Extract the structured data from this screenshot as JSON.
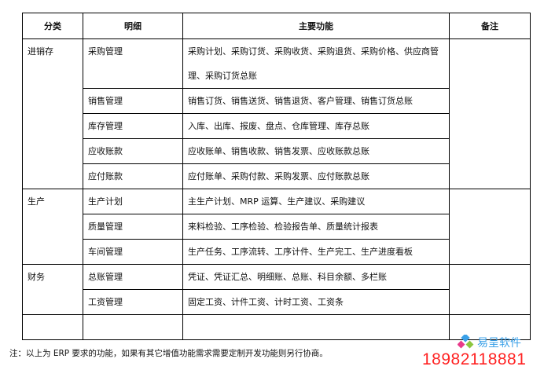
{
  "table": {
    "headers": [
      "分类",
      "明细",
      "主要功能",
      "备注"
    ],
    "groups": [
      {
        "category": "进销存",
        "rows": [
          {
            "detail": "采购管理",
            "functions": "采购计划、采购订货、采购收货、采购退货、采购价格、供应商管理、采购订货总账"
          },
          {
            "detail": "销售管理",
            "functions": "销售订货、销售送货、销售退货、客户管理、销售订货总账"
          },
          {
            "detail": "库存管理",
            "functions": "入库、出库、报废、盘点、仓库管理、库存总账"
          },
          {
            "detail": "应收账款",
            "functions": "应收账单、销售收款、销售发票、应收账款总账"
          },
          {
            "detail": "应付账款",
            "functions": "应付账单、采购付款、采购发票、应付账款总账"
          }
        ]
      },
      {
        "category": "生产",
        "rows": [
          {
            "detail": "生产计划",
            "functions": "主生产计划、MRP 运算、生产建议、采购建议"
          },
          {
            "detail": "质量管理",
            "functions": "来料检验、工序检验、检验报告单、质量统计报表"
          },
          {
            "detail": "车间管理",
            "functions": "生产任务、工序流转、工序计件、生产完工、生产进度看板"
          }
        ]
      },
      {
        "category": "财务",
        "rows": [
          {
            "detail": "总账管理",
            "functions": "凭证、凭证汇总、明细账、总账、科目余额、多栏账"
          },
          {
            "detail": "工资管理",
            "functions": "固定工资、计件工资、计时工资、工资条"
          }
        ]
      }
    ]
  },
  "note": "注：以上为 ERP 要求的功能，如果有其它增值功能需求需要定制开发功能则另行协商。",
  "watermark": {
    "brand": "易呈软件",
    "phone": "18982118881",
    "phone_color": "#ff2222",
    "brand_color": "#3aa0e8"
  }
}
